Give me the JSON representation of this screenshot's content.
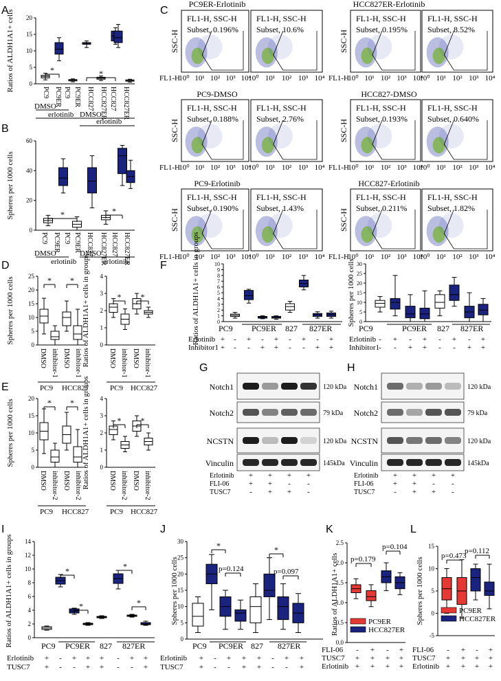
{
  "panel_letters": [
    "A",
    "B",
    "C",
    "D",
    "E",
    "F",
    "G",
    "H",
    "I",
    "J",
    "K",
    "L"
  ],
  "colors": {
    "blue": "#1a237e",
    "red": "#e53935",
    "white": "#ffffff",
    "dot_blue": "#3949ab",
    "dot_green": "#7cb342"
  },
  "panelA": {
    "ylabel": "Ratios of ALDH1A1+ cells",
    "y_ticks": [
      "0",
      "5",
      "10",
      "15",
      "20"
    ],
    "ylim": [
      0,
      20
    ],
    "x_labels": [
      "PC9",
      "PC9ER",
      "PC9",
      "PC9ER",
      "HCC827",
      "HCC827ER",
      "HCC827",
      "HCC827ER"
    ],
    "group_labels": [
      "DMSO",
      "erlotinib",
      "DMSO",
      "erlotinib"
    ],
    "star": "*"
  },
  "panelB": {
    "ylabel": "Spheres per 1000 cells",
    "y_ticks": [
      "0",
      "20",
      "40",
      "60"
    ],
    "ylim": [
      0,
      60
    ],
    "x_labels": [
      "PC9",
      "PC9ER",
      "PC9",
      "PC9ER",
      "HCC827",
      "HCC827ER",
      "HCC827",
      "HCC827ER"
    ],
    "group_labels": [
      "DMSO",
      "erlotinib",
      "DMSO",
      "erlotinib"
    ],
    "star": "*"
  },
  "panelC": {
    "titles": [
      "PC9ER-Erlotinib",
      "HCC827ER-Erlotinib",
      "PC9-DMSO",
      "HCC827-DMSO",
      "PC9-Erlotinib",
      "HCC827-Erlotinib"
    ],
    "gate_label_line1": "FL1-H, SSC-H",
    "subsets": [
      "Subset, 0.196%",
      "Subset, 10.6%",
      "Subset, 0.195%",
      "Subset, 8.52%",
      "Subset, 0.188%",
      "Subset, 2.76%",
      "Subset, 0.193%",
      "Subset, 0.640%",
      "Subset, 0.190%",
      "Subset, 1.43%",
      "Subset, 0.211%",
      "Subset, 1.82%"
    ],
    "ylabel": "SSC-H",
    "xlabel": "FL1-H",
    "x_ticks": [
      "10⁰",
      "10¹",
      "10²",
      "10³",
      "10⁴"
    ]
  },
  "panelD": {
    "left_ylabel": "Spheres per 1000 cells",
    "left_y_ticks": [
      "0",
      "5",
      "10",
      "15",
      "20",
      "25"
    ],
    "right_ylabel": "Ratios of ALDH1A1+ cells in groups",
    "right_y_ticks": [
      "0",
      "1",
      "2",
      "3",
      "4"
    ],
    "x_labels": [
      "DMSO",
      "inhibitor-1",
      "DMSO",
      "inhibitor-1"
    ],
    "groups": [
      "PC9",
      "HCC827"
    ],
    "star": "*"
  },
  "panelE": {
    "left_ylabel": "Spheres per 1000 cells",
    "left_y_ticks": [
      "0",
      "5",
      "10",
      "15",
      "20"
    ],
    "right_ylabel": "Ratios of ALDH1A1+ cells in groups",
    "right_y_ticks": [
      "0",
      "1",
      "2",
      "3",
      "4"
    ],
    "x_labels": [
      "DMSO",
      "inhibitor-2",
      "DMSO",
      "inhibitor-2"
    ],
    "groups": [
      "PC9",
      "HCC827"
    ],
    "star": "*"
  },
  "panelF": {
    "left_ylabel": "Ratios of ALDH1A1+ cells in groups",
    "left_y_ticks": [
      "0",
      "1",
      "2",
      "3",
      "4",
      "5",
      "6",
      "7",
      "8",
      "9",
      "10"
    ],
    "right_ylabel": "Spheres per 1000 cells",
    "right_y_ticks": [
      "0",
      "5",
      "10",
      "15",
      "20",
      "25",
      "30"
    ],
    "groups": [
      "PC9",
      "PC9ER",
      "827",
      "827ER"
    ],
    "row1_label": "Erlotinib",
    "row2_label": "Inhibitor1",
    "row1": [
      "+",
      "-",
      "+",
      "-",
      "+",
      "-",
      "+",
      "-",
      "+"
    ],
    "row2": [
      "+",
      "-",
      "-",
      "+",
      "+",
      "-",
      "-",
      "+",
      "+"
    ]
  },
  "panelG": {
    "bands": [
      "Notch1",
      "Notch2",
      "NCSTN",
      "Vinculin"
    ],
    "sizes": [
      "120 kDa",
      "79 kDa",
      "120 kDa",
      "145kDa"
    ],
    "row_labels": [
      "Erlotinib",
      "FLI-06",
      "TUSC7"
    ],
    "row_values": [
      [
        "+",
        "+",
        "+",
        "+"
      ],
      [
        "+",
        "+",
        "-",
        "-"
      ],
      [
        "-",
        "+",
        "+",
        "-"
      ]
    ]
  },
  "panelH": {
    "bands": [
      "Notch1",
      "Notch2",
      "NCSTN",
      "Vinculin"
    ],
    "sizes": [
      "120 kDa",
      "79 kDa",
      "120 kDa",
      "145kDa"
    ],
    "row_labels": [
      "Erlotinib",
      "FLI-06",
      "TUSC7"
    ],
    "row_values": [
      [
        "+",
        "+",
        "+",
        "+"
      ],
      [
        "+",
        "+",
        "-",
        "-"
      ],
      [
        "-",
        "+",
        "+",
        "-"
      ]
    ]
  },
  "panelI": {
    "ylabel": "Ratios of ALDH1A1+ cells in groups",
    "y_ticks": [
      "0",
      "2",
      "4",
      "6",
      "8",
      "10",
      "12",
      "14"
    ],
    "groups": [
      "PC9",
      "PC9ER",
      "827",
      "827ER"
    ],
    "row1_label": "Erlotinib",
    "row2_label": "TUSC7",
    "row1": [
      "+",
      "-",
      "+",
      "+",
      "+",
      "-",
      "+",
      "+"
    ],
    "row2": [
      "+",
      "-",
      "-",
      "+",
      "+",
      "-",
      "-",
      "+"
    ],
    "star": "*"
  },
  "panelJ": {
    "ylabel": "Spheres per 1000 cells",
    "y_ticks": [
      "0",
      "5",
      "10",
      "15",
      "20",
      "25",
      "30"
    ],
    "groups": [
      "PC9",
      "PC9ER",
      "827",
      "827ER"
    ],
    "row1_label": "Erlotinib",
    "row2_label": "TUSC7",
    "row1": [
      "+",
      "-",
      "+",
      "+",
      "+",
      "-",
      "+",
      "+"
    ],
    "row2": [
      "+",
      "-",
      "-",
      "+",
      "+",
      "-",
      "-",
      "+"
    ],
    "pvals": [
      "p=0.124",
      "p=0.097"
    ],
    "star": "*"
  },
  "panelK": {
    "ylabel": "Ratios of ALDH1A1+ cells",
    "y_ticks": [
      "0.0",
      "0.5",
      "1.0",
      "1.5",
      "2.0",
      "2.5"
    ],
    "pvals": [
      "p=0.179",
      "p=0.104"
    ],
    "legend": [
      "PC9ER",
      "HCC827ER"
    ],
    "row_labels": [
      "FLI-06",
      "TUSC7",
      "Erlotinib"
    ],
    "rows": [
      [
        "-",
        "+",
        "-",
        "+"
      ],
      [
        "+",
        "+",
        "+",
        "+"
      ],
      [
        "+",
        "+",
        "+",
        "+"
      ]
    ]
  },
  "panelL": {
    "ylabel": "Spheres per 1000 cells",
    "y_ticks": [
      "-5",
      "0",
      "5",
      "10",
      "15"
    ],
    "pvals": [
      "p=0.473",
      "p=0.112"
    ],
    "legend": [
      "PC9ER",
      "HCC827ER"
    ],
    "row_labels": [
      "FLI-06",
      "TUSC7",
      "Erlotinib"
    ],
    "rows": [
      [
        "-",
        "+",
        "-",
        "+"
      ],
      [
        "+",
        "+",
        "+",
        "+"
      ],
      [
        "+",
        "+",
        "+",
        "+"
      ]
    ]
  }
}
